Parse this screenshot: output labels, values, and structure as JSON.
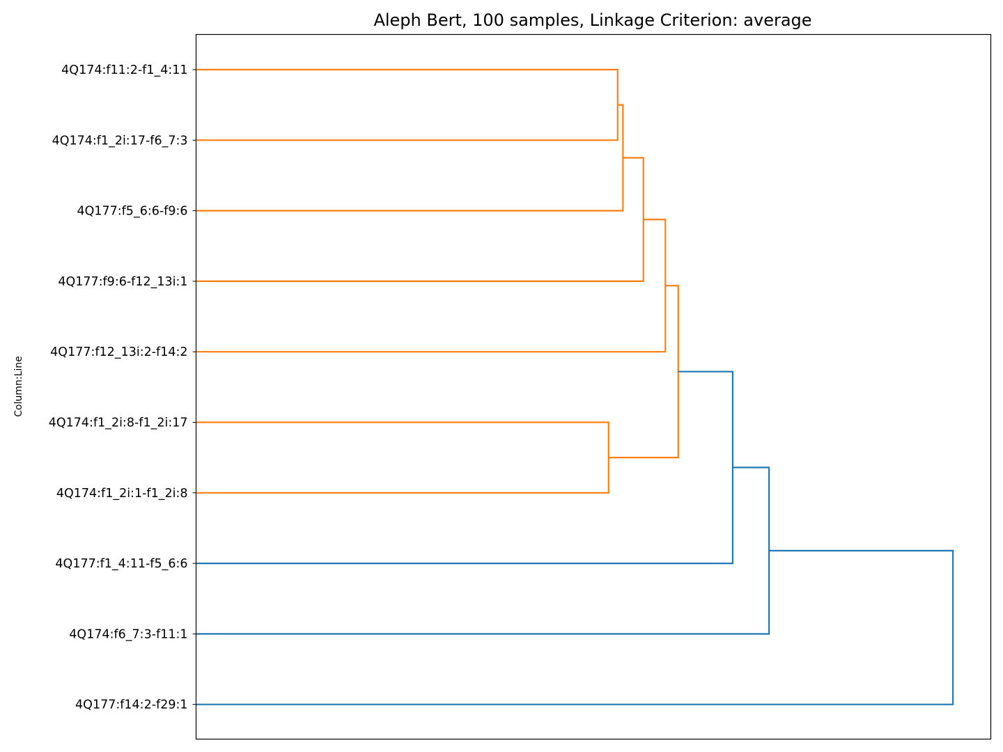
{
  "chart_data": {
    "type": "dendrogram",
    "orientation": "left",
    "title": "Aleph Bert, 100 samples, Linkage Criterion: average",
    "ylabel": "Column:Line",
    "xlabel": "",
    "x_axis_shown": false,
    "grid": false,
    "colors": {
      "cluster_1": "#ff7f0e",
      "above_threshold": "#1f77b4"
    },
    "leaves": [
      "4Q174:f11:2-f1_4:11",
      "4Q174:f1_2i:17-f6_7:3",
      "4Q177:f5_6:6-f9:6",
      "4Q177:f9:6-f12_13i:1",
      "4Q177:f12_13i:2-f14:2",
      "4Q174:f1_2i:8-f1_2i:17",
      "4Q174:f1_2i:1-f1_2i:8",
      "4Q177:f1_4:11-f5_6:6",
      "4Q174:f6_7:3-f11:1",
      "4Q177:f14:2-f29:1"
    ],
    "merges": [
      {
        "id": "m1",
        "children": [
          "L0",
          "L1"
        ],
        "height": 0.557,
        "color": "#ff7f0e"
      },
      {
        "id": "m2",
        "children": [
          "m1",
          "L2"
        ],
        "height": 0.564,
        "color": "#ff7f0e"
      },
      {
        "id": "m3",
        "children": [
          "m2",
          "L3"
        ],
        "height": 0.591,
        "color": "#ff7f0e"
      },
      {
        "id": "m4",
        "children": [
          "m3",
          "L4"
        ],
        "height": 0.62,
        "color": "#ff7f0e"
      },
      {
        "id": "m5",
        "children": [
          "L5",
          "L6"
        ],
        "height": 0.545,
        "color": "#ff7f0e"
      },
      {
        "id": "m6",
        "children": [
          "m4",
          "m5"
        ],
        "height": 0.637,
        "color": "#ff7f0e"
      },
      {
        "id": "m7",
        "children": [
          "m6",
          "L7"
        ],
        "height": 0.709,
        "color": "#1f77b4"
      },
      {
        "id": "m8",
        "children": [
          "m7",
          "L8"
        ],
        "height": 0.757,
        "color": "#1f77b4"
      },
      {
        "id": "m9",
        "children": [
          "m8",
          "L9"
        ],
        "height": 1.0,
        "color": "#1f77b4"
      }
    ],
    "xlim": [
      0,
      1.05
    ]
  }
}
